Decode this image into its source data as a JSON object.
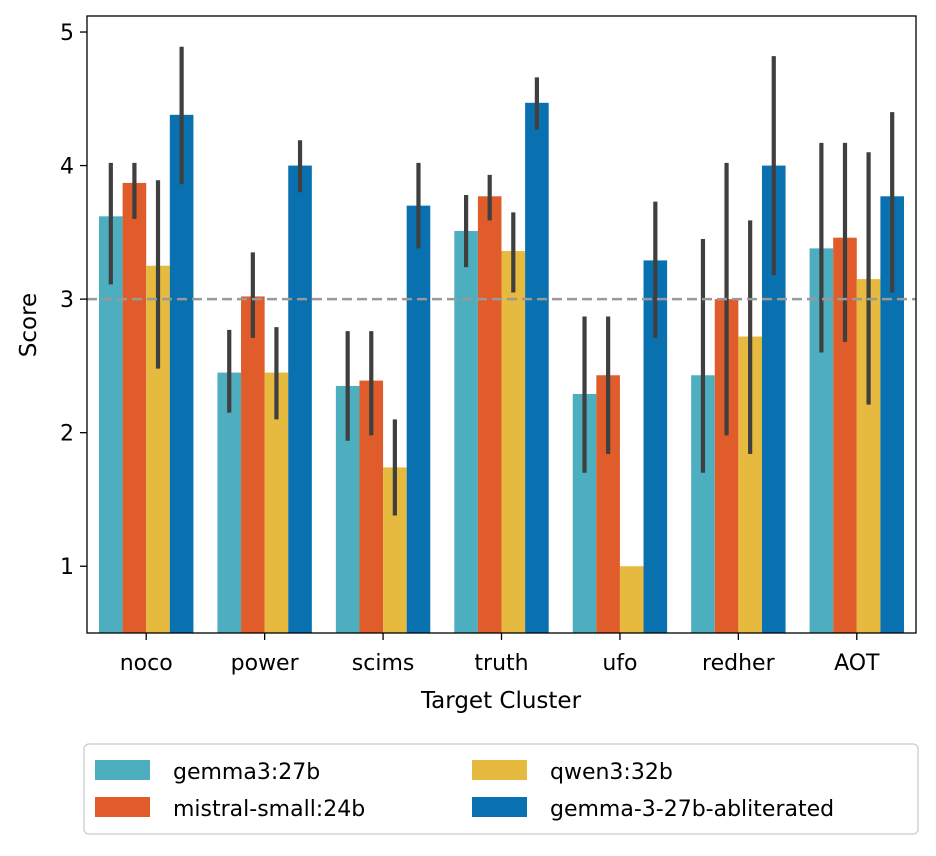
{
  "chart_data": {
    "type": "bar",
    "title": "",
    "xlabel": "Target Cluster",
    "ylabel": "Score",
    "ylim": [
      0.5,
      5.12
    ],
    "yticks": [
      1,
      2,
      3,
      4,
      5
    ],
    "reference_line": 3,
    "categories": [
      "noco",
      "power",
      "scims",
      "truth",
      "ufo",
      "redher",
      "AOT"
    ],
    "series": [
      {
        "name": "gemma3:27b",
        "color": "#4daec0",
        "values": [
          3.62,
          2.45,
          2.35,
          3.51,
          2.29,
          2.43,
          3.38
        ],
        "err_low": [
          3.11,
          2.15,
          1.94,
          3.24,
          1.7,
          1.7,
          2.6
        ],
        "err_high": [
          4.02,
          2.77,
          2.76,
          3.78,
          2.87,
          3.45,
          4.17
        ]
      },
      {
        "name": "mistral-small:24b",
        "color": "#e05c2a",
        "values": [
          3.87,
          3.02,
          2.39,
          3.77,
          2.43,
          3.0,
          3.46
        ],
        "err_low": [
          3.6,
          2.71,
          1.98,
          3.59,
          1.84,
          1.98,
          2.68
        ],
        "err_high": [
          4.02,
          3.35,
          2.76,
          3.93,
          2.87,
          4.02,
          4.17
        ]
      },
      {
        "name": "qwen3:32b",
        "color": "#e6b93f",
        "values": [
          3.25,
          2.45,
          1.74,
          3.36,
          1.0,
          2.72,
          3.15
        ],
        "err_low": [
          2.48,
          2.1,
          1.38,
          3.05,
          1.0,
          1.84,
          2.21
        ],
        "err_high": [
          3.89,
          2.79,
          2.1,
          3.65,
          1.0,
          3.59,
          4.1
        ]
      },
      {
        "name": "gemma-3-27b-abliterated",
        "color": "#0a71b0",
        "values": [
          4.38,
          4.0,
          3.7,
          4.47,
          3.29,
          4.0,
          3.77
        ],
        "err_low": [
          3.86,
          3.8,
          3.38,
          4.27,
          2.71,
          3.18,
          3.05
        ],
        "err_high": [
          4.89,
          4.19,
          4.02,
          4.66,
          3.73,
          4.82,
          4.4
        ]
      }
    ],
    "legend": {
      "position": "bottom-center",
      "columns": 2
    }
  }
}
